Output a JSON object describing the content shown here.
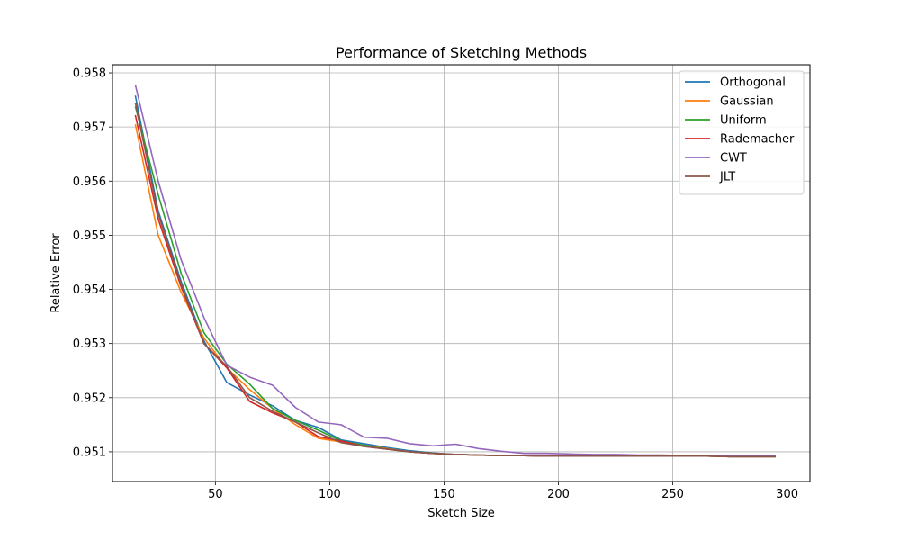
{
  "chart_data": {
    "type": "line",
    "title": "Performance of Sketching Methods",
    "xlabel": "Sketch Size",
    "ylabel": "Relative Error",
    "xlim": [
      5,
      310
    ],
    "ylim": [
      0.95045,
      0.95815
    ],
    "xticks": [
      50,
      100,
      150,
      200,
      250,
      300
    ],
    "yticks": [
      0.951,
      0.952,
      0.953,
      0.954,
      0.955,
      0.956,
      0.957,
      0.958
    ],
    "grid": true,
    "legend": "top-right",
    "x": [
      15,
      25,
      35,
      45,
      55,
      65,
      75,
      85,
      95,
      105,
      115,
      125,
      135,
      145,
      155,
      165,
      175,
      185,
      195,
      205,
      215,
      225,
      235,
      245,
      255,
      265,
      275,
      285,
      295
    ],
    "series": [
      {
        "name": "Orthogonal",
        "color": "#1f77b4",
        "values": [
          0.95758,
          0.95545,
          0.95415,
          0.95305,
          0.95228,
          0.95205,
          0.95185,
          0.95158,
          0.95145,
          0.95122,
          0.95115,
          0.95108,
          0.95102,
          0.95098,
          0.95095,
          0.95094,
          0.95093,
          0.95093,
          0.95092,
          0.95092,
          0.95092,
          0.95092,
          0.95092,
          0.95092,
          0.95092,
          0.95092,
          0.95091,
          0.95091,
          0.95091
        ]
      },
      {
        "name": "Gaussian",
        "color": "#ff7f0e",
        "values": [
          0.95705,
          0.955,
          0.95395,
          0.9531,
          0.95255,
          0.95215,
          0.9518,
          0.9515,
          0.95125,
          0.95118,
          0.95112,
          0.95106,
          0.951,
          0.95097,
          0.95095,
          0.95094,
          0.95093,
          0.95093,
          0.95092,
          0.95092,
          0.95092,
          0.95092,
          0.95092,
          0.95092,
          0.95092,
          0.95092,
          0.95091,
          0.95091,
          0.95091
        ]
      },
      {
        "name": "Uniform",
        "color": "#2ca02c",
        "values": [
          0.95738,
          0.95575,
          0.9543,
          0.9532,
          0.95262,
          0.95225,
          0.9518,
          0.95158,
          0.9514,
          0.9512,
          0.95112,
          0.95105,
          0.951,
          0.95097,
          0.95095,
          0.95094,
          0.95093,
          0.95093,
          0.95092,
          0.95092,
          0.95092,
          0.95092,
          0.95092,
          0.95092,
          0.95092,
          0.95092,
          0.95091,
          0.95091,
          0.95091
        ]
      },
      {
        "name": "Rademacher",
        "color": "#d62728",
        "values": [
          0.95722,
          0.9553,
          0.95405,
          0.953,
          0.95255,
          0.95193,
          0.95172,
          0.95155,
          0.95128,
          0.9512,
          0.9511,
          0.95105,
          0.951,
          0.95097,
          0.95095,
          0.95094,
          0.95093,
          0.95093,
          0.95092,
          0.95092,
          0.95092,
          0.95092,
          0.95092,
          0.95092,
          0.95092,
          0.95092,
          0.95091,
          0.95091,
          0.95091
        ]
      },
      {
        "name": "CWT",
        "color": "#9467bd",
        "values": [
          0.95778,
          0.956,
          0.95455,
          0.95348,
          0.9526,
          0.95238,
          0.95223,
          0.95182,
          0.95155,
          0.9515,
          0.95127,
          0.95125,
          0.95115,
          0.95111,
          0.95114,
          0.95106,
          0.95101,
          0.95097,
          0.95097,
          0.95096,
          0.95095,
          0.95095,
          0.95094,
          0.95094,
          0.95093,
          0.95093,
          0.95093,
          0.95092,
          0.95092
        ]
      },
      {
        "name": "JLT",
        "color": "#8c564b",
        "values": [
          0.95745,
          0.9554,
          0.9541,
          0.953,
          0.95258,
          0.952,
          0.95175,
          0.95155,
          0.95135,
          0.95117,
          0.9511,
          0.95105,
          0.951,
          0.95097,
          0.95095,
          0.95094,
          0.95093,
          0.95093,
          0.95092,
          0.95092,
          0.95092,
          0.95092,
          0.95092,
          0.95092,
          0.95092,
          0.95092,
          0.95091,
          0.95091,
          0.95091
        ]
      }
    ]
  }
}
